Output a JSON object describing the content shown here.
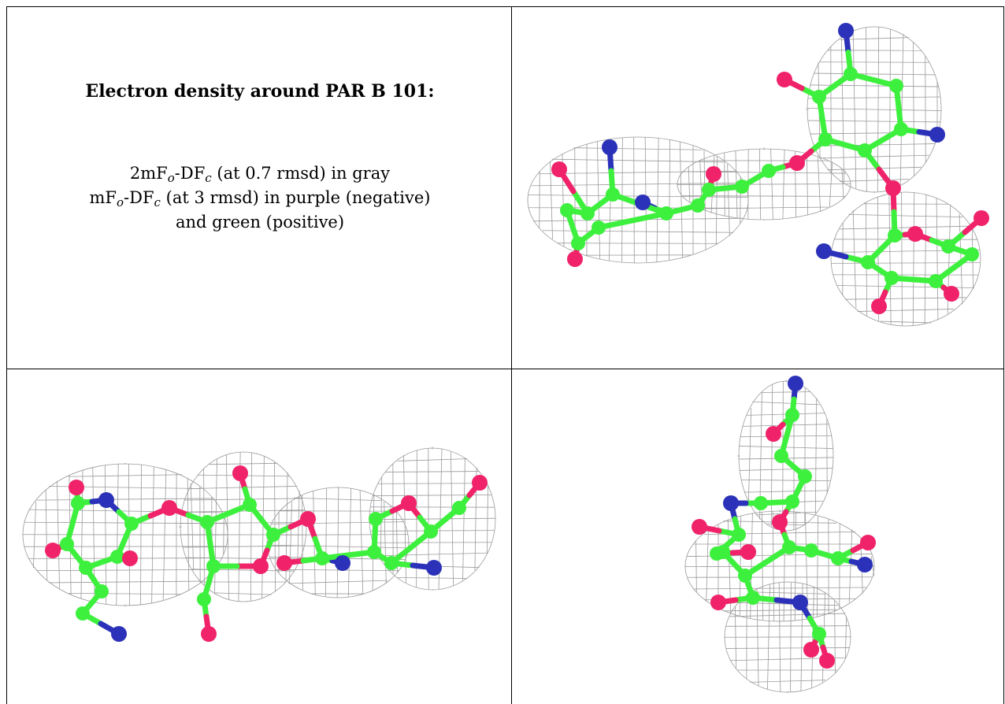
{
  "caption": {
    "title": "Electron density around PAR B 101:",
    "line1": {
      "prefix": "2mF",
      "sub_o": "o",
      "mid": "-DF",
      "sub_c": "c",
      "suffix": " (at 0.7 rmsd) in gray"
    },
    "line2": {
      "prefix": "mF",
      "sub_o": "o",
      "mid": "-DF",
      "sub_c": "c",
      "suffix": " (at 3 rmsd) in purple (negative)"
    },
    "line3": "and green (positive)"
  },
  "colors": {
    "mesh": "#9a9a9a",
    "carbon": "#3ef03e",
    "oxygen": "#f0226a",
    "nitrogen": "#2b31b8",
    "border": "#000000"
  },
  "views": [
    {
      "name": "view-top-right"
    },
    {
      "name": "view-bottom-left"
    },
    {
      "name": "view-bottom-right"
    }
  ]
}
